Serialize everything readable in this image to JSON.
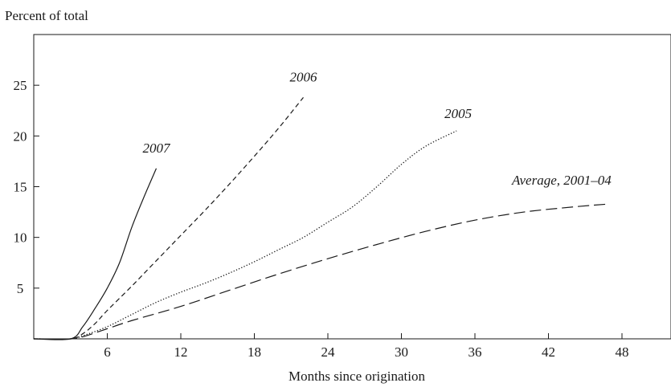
{
  "chart_data": {
    "type": "line",
    "title": "",
    "ylabel": "Percent of total",
    "xlabel": "Months since origination",
    "xlim": [
      0,
      52
    ],
    "ylim": [
      0,
      30
    ],
    "xticks": [
      6,
      12,
      18,
      24,
      30,
      36,
      42,
      48
    ],
    "yticks": [
      5,
      10,
      15,
      20,
      25
    ],
    "grid": false,
    "legend": "none (series labeled directly on lines)",
    "series": [
      {
        "name": "2007",
        "dash": "solid",
        "x": [
          0,
          3,
          4,
          5,
          6,
          7,
          8,
          9,
          10
        ],
        "y": [
          0,
          0,
          1.2,
          3.0,
          5.0,
          7.5,
          11,
          14,
          16.8
        ]
      },
      {
        "name": "2006",
        "dash": "short-dash",
        "x": [
          0,
          3,
          4,
          5,
          6,
          8,
          10,
          12,
          14,
          16,
          18,
          20,
          22
        ],
        "y": [
          0,
          0,
          0.5,
          1.5,
          2.8,
          5.2,
          7.7,
          10.2,
          12.7,
          15.3,
          18.0,
          20.8,
          23.8
        ]
      },
      {
        "name": "2005",
        "dash": "dotted",
        "x": [
          0,
          3,
          4,
          6,
          8,
          10,
          12,
          14,
          16,
          18,
          20,
          22,
          24,
          26,
          28,
          30,
          32,
          34.5
        ],
        "y": [
          0,
          0,
          0.3,
          1.2,
          2.4,
          3.6,
          4.6,
          5.5,
          6.5,
          7.6,
          8.8,
          10.0,
          11.5,
          13.0,
          15.0,
          17.2,
          19.0,
          20.5
        ]
      },
      {
        "name": "Average, 2001–04",
        "dash": "long-dash",
        "x": [
          0,
          3,
          4,
          6,
          8,
          12,
          16,
          20,
          24,
          28,
          32,
          36,
          40,
          44,
          47
        ],
        "y": [
          0,
          0,
          0.2,
          1.0,
          1.8,
          3.2,
          4.8,
          6.4,
          7.9,
          9.3,
          10.6,
          11.7,
          12.5,
          13.0,
          13.3
        ]
      }
    ]
  }
}
